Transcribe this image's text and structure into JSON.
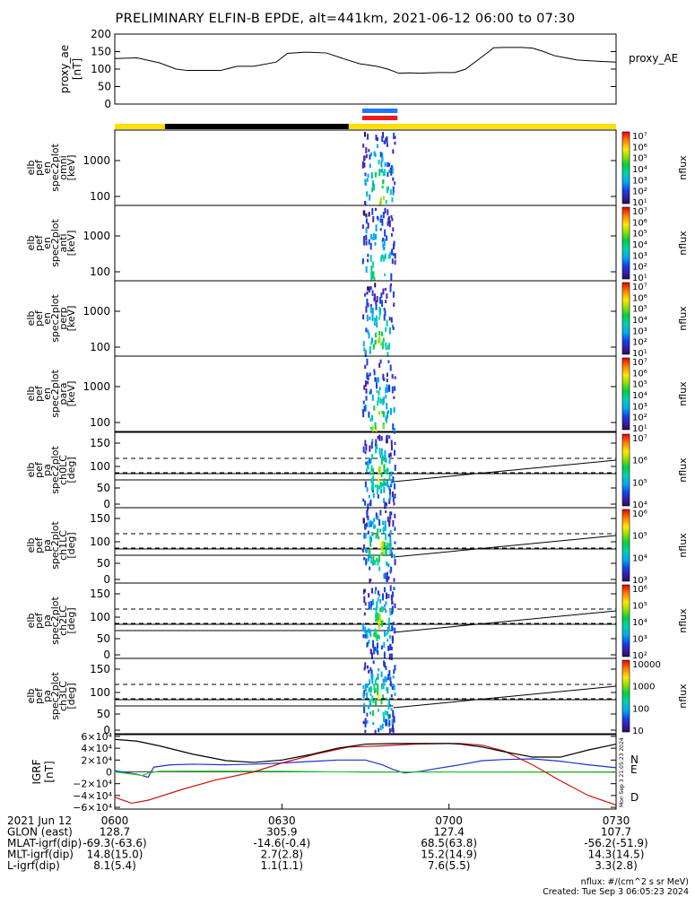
{
  "title": "PRELIMINARY ELFIN-B EPDE, alt=441km, 2021-06-12 06:00 to 07:30",
  "chart_data": {
    "type": "line",
    "xrange_minutes": [
      0,
      90
    ],
    "proxy_ae": {
      "ylabel": [
        "proxy_ae",
        "[nT]"
      ],
      "right_label": "proxy_AE",
      "ylim": [
        0,
        200
      ],
      "yticks": [
        "200",
        "150",
        "100",
        "50",
        "0"
      ],
      "ytick_values": [
        200,
        150,
        100,
        50,
        0
      ],
      "x": [
        0,
        4,
        8,
        11,
        13,
        15,
        19,
        22,
        25,
        29,
        31,
        34,
        35,
        38,
        41,
        44,
        47,
        49,
        51,
        53,
        55,
        58,
        61,
        63,
        67,
        68,
        70,
        73,
        75,
        77,
        79,
        83,
        87,
        90
      ],
      "y": [
        130,
        132,
        118,
        100,
        96,
        96,
        96,
        108,
        108,
        120,
        145,
        148,
        148,
        146,
        130,
        115,
        108,
        100,
        88,
        89,
        88,
        90,
        90,
        100,
        148,
        161,
        162,
        162,
        160,
        150,
        138,
        126,
        122,
        120
      ]
    },
    "bars": {
      "state_segments": [
        {
          "start": 0,
          "end": 9,
          "color": "#ffe000"
        },
        {
          "start": 9,
          "end": 42,
          "color": "#000000"
        },
        {
          "start": 42,
          "end": 90,
          "color": "#ffe000"
        }
      ],
      "science_marks": [
        {
          "start": 44.6,
          "end": 50.6,
          "color": "#1e78ff"
        },
        {
          "start": 44.6,
          "end": 50.6,
          "color": "#ee1c1c"
        }
      ]
    },
    "spectrograms": [
      {
        "ylabel": [
          "elb",
          "pef",
          "en",
          "spec2plot",
          "omni",
          "[keV]"
        ],
        "yticks": [
          "1000",
          "100"
        ],
        "cb_labels": [
          "10⁷",
          "10⁶",
          "10⁵",
          "10⁴",
          "10³",
          "10²",
          "10¹"
        ],
        "cb_title": "nflux",
        "kind": "energy"
      },
      {
        "ylabel": [
          "elb",
          "pef",
          "en",
          "spec2plot",
          "anti",
          "[keV]"
        ],
        "yticks": [
          "1000",
          "100"
        ],
        "cb_labels": [
          "10⁷",
          "10⁶",
          "10⁵",
          "10⁴",
          "10³",
          "10²",
          "10¹"
        ],
        "cb_title": "nflux",
        "kind": "energy"
      },
      {
        "ylabel": [
          "elb",
          "pef",
          "en",
          "spec2plot",
          "perp",
          "[keV]"
        ],
        "yticks": [
          "1000",
          "100"
        ],
        "cb_labels": [
          "10⁷",
          "10⁶",
          "10⁵",
          "10⁴",
          "10³",
          "10²",
          "10¹"
        ],
        "cb_title": "nflux",
        "kind": "energy"
      },
      {
        "ylabel": [
          "elb",
          "pef",
          "en",
          "spec2plot",
          "para",
          "[keV]"
        ],
        "yticks": [
          "1000",
          "100"
        ],
        "cb_labels": [
          "10⁷",
          "10⁶",
          "10⁵",
          "10⁴",
          "10³",
          "10²",
          "10¹"
        ],
        "cb_title": "nflux",
        "kind": "energy"
      },
      {
        "ylabel": [
          "elb",
          "pef",
          "pa",
          "spec2plot",
          "ch0LC",
          "[deg]"
        ],
        "yticks": [
          "150",
          "100",
          "50",
          "0"
        ],
        "cb_labels": [
          "10⁷",
          "10⁶",
          "10⁵",
          "10⁴"
        ],
        "cb_title": "nflux",
        "kind": "pa"
      },
      {
        "ylabel": [
          "elb",
          "pef",
          "pa",
          "spec2plot",
          "ch1LC",
          "[deg]"
        ],
        "yticks": [
          "150",
          "100",
          "50",
          "0"
        ],
        "cb_labels": [
          "10⁶",
          "10⁵",
          "10⁴",
          "10³"
        ],
        "cb_title": "nflux",
        "kind": "pa"
      },
      {
        "ylabel": [
          "elb",
          "pef",
          "pa",
          "spec2plot",
          "ch2LC",
          "[deg]"
        ],
        "yticks": [
          "150",
          "100",
          "50",
          "0"
        ],
        "cb_labels": [
          "10⁶",
          "10⁵",
          "10⁴",
          "10³",
          "10²"
        ],
        "cb_title": "nflux",
        "kind": "pa"
      },
      {
        "ylabel": [
          "elb",
          "pef",
          "pa",
          "spec2plot",
          "ch3LC",
          "[deg]"
        ],
        "yticks": [
          "150",
          "100",
          "50",
          "0"
        ],
        "cb_labels": [
          "10000",
          "1000",
          "100",
          "10"
        ],
        "cb_title": "nflux",
        "kind": "pa"
      }
    ],
    "igrf": {
      "ylabel": [
        "IGRF",
        "[nT]"
      ],
      "yticks": [
        "6×10⁴",
        "4×10⁴",
        "2×10⁴",
        "0",
        "−2×10⁴",
        "−4×10⁴",
        "−6×10⁴"
      ],
      "ytick_values": [
        60000,
        40000,
        20000,
        0,
        -20000,
        -40000,
        -60000
      ],
      "ylim": [
        -63000,
        63000
      ],
      "series": [
        {
          "name": "N",
          "color": "#1a33cc",
          "x": [
            0,
            4,
            6,
            7,
            10,
            14,
            20,
            25,
            30,
            36,
            40,
            45,
            48,
            50,
            52,
            55,
            58,
            62,
            66,
            70,
            75,
            80,
            85,
            90
          ],
          "y": [
            2000,
            -4000,
            -9000,
            8000,
            12000,
            13000,
            12000,
            13000,
            15000,
            18000,
            20000,
            20000,
            12000,
            4000,
            -2000,
            1000,
            6000,
            12000,
            19000,
            21000,
            22000,
            18000,
            12000,
            7000
          ]
        },
        {
          "name": "E",
          "color": "#22cc22",
          "x": [
            0,
            5,
            6,
            8,
            15,
            30,
            45,
            60,
            75,
            90
          ],
          "y": [
            0,
            -6000,
            -2000,
            1000,
            1200,
            1000,
            -500,
            -200,
            -400,
            -600
          ]
        },
        {
          "name": "D",
          "color": "#cc1111",
          "x": [
            0,
            3,
            6,
            12,
            18,
            25,
            30,
            36,
            42,
            48,
            54,
            60,
            62,
            66,
            70,
            75,
            80,
            85,
            90
          ],
          "y": [
            -43000,
            -53000,
            -48000,
            -30000,
            -14000,
            0,
            15000,
            30000,
            42000,
            44000,
            47000,
            48000,
            48000,
            45000,
            35000,
            12000,
            -15000,
            -40000,
            -56000
          ]
        },
        {
          "name": "",
          "color": "#000000",
          "x": [
            0,
            4,
            8,
            14,
            20,
            25,
            30,
            35,
            40,
            45,
            50,
            55,
            60,
            62,
            66,
            70,
            75,
            80,
            85,
            90
          ],
          "y": [
            55000,
            52000,
            44000,
            30000,
            19000,
            16000,
            20000,
            29000,
            40000,
            47000,
            48000,
            48000,
            48000,
            47000,
            42000,
            34000,
            25000,
            25000,
            37000,
            47000
          ]
        }
      ],
      "right_labels": [
        {
          "text": "N",
          "color": "#1a33cc"
        },
        {
          "text": "E",
          "color": "#22cc22"
        },
        {
          "text": "D",
          "color": "#cc1111"
        }
      ],
      "side_note": "Mon Sep  3 21:05:23 2024"
    },
    "time_axis": {
      "rows": [
        {
          "label": "2021 Jun 12",
          "values": [
            "0600",
            "0630",
            "0700",
            "0730"
          ]
        },
        {
          "label": "GLON (east)",
          "values": [
            "128.7",
            "305.9",
            "127.4",
            "107.7"
          ]
        },
        {
          "label": "MLAT-igrf(dip)",
          "values": [
            "-69.3(-63.6)",
            "-14.6(-0.4)",
            "68.5(63.8)",
            "-56.2(-51.9)"
          ]
        },
        {
          "label": "MLT-igrf(dip)",
          "values": [
            "14.8(15.0)",
            "2.7(2.8)",
            "15.2(14.9)",
            "14.3(14.5)"
          ]
        },
        {
          "label": "L-igrf(dip)",
          "values": [
            "8.1(5.4)",
            "1.1(1.1)",
            "7.6(5.5)",
            "3.3(2.8)"
          ]
        }
      ]
    },
    "footer": {
      "units": "nflux: #/(cm^2 s sr MeV)",
      "created": "Created: Tue Sep  3 06:05:23 2024"
    }
  }
}
